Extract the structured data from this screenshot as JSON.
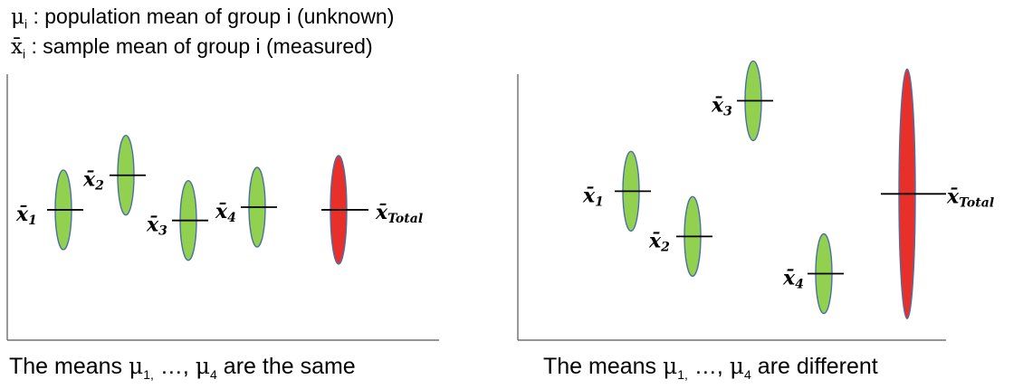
{
  "legend": {
    "mu_line": {
      "symbol": "μ",
      "sub": "i",
      "text": " : population mean of group i (unknown)"
    },
    "xbar_line": {
      "symbol": "x̄",
      "sub": "i",
      "text": " : sample mean of group i (measured)"
    }
  },
  "panels": [
    {
      "id": "same",
      "caption": {
        "prefix": "The means ",
        "mu1": "μ",
        "sub1": "1,",
        "middle": " …, ",
        "mu2": "μ",
        "sub2": "4",
        "suffix": " are the same"
      },
      "groups": [
        {
          "label": "x̄",
          "sub": "1",
          "color": "#92d050",
          "mean_level": 0.49
        },
        {
          "label": "x̄",
          "sub": "2",
          "color": "#92d050",
          "mean_level": 0.62
        },
        {
          "label": "x̄",
          "sub": "3",
          "color": "#92d050",
          "mean_level": 0.45
        },
        {
          "label": "x̄",
          "sub": "4",
          "color": "#92d050",
          "mean_level": 0.5
        }
      ],
      "total": {
        "label": "x̄",
        "sub": "Total",
        "color": "#e8302a",
        "mean_level": 0.49
      }
    },
    {
      "id": "different",
      "caption": {
        "prefix": "The means ",
        "mu1": "μ",
        "sub1": "1,",
        "middle": " …, ",
        "mu2": "μ",
        "sub2": "4",
        "suffix": " are different"
      },
      "groups": [
        {
          "label": "x̄",
          "sub": "1",
          "color": "#92d050",
          "mean_level": 0.56
        },
        {
          "label": "x̄",
          "sub": "2",
          "color": "#92d050",
          "mean_level": 0.39
        },
        {
          "label": "x̄",
          "sub": "3",
          "color": "#92d050",
          "mean_level": 0.9
        },
        {
          "label": "x̄",
          "sub": "4",
          "color": "#92d050",
          "mean_level": 0.25
        }
      ],
      "total": {
        "label": "x̄",
        "sub": "Total",
        "color": "#e8302a",
        "mean_level": 0.55
      }
    }
  ]
}
